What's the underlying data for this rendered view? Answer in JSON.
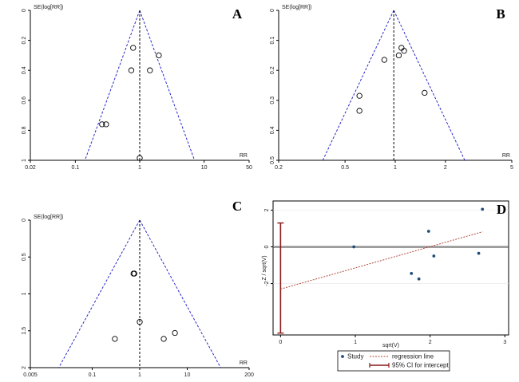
{
  "chart_data": [
    {
      "panel": "A",
      "type": "scatter",
      "ylabel": "SE(log[RR])",
      "xlabel": "RR",
      "x_scale": "log",
      "y_reversed": true,
      "x_ticks": [
        "0.02",
        "0.1",
        "1",
        "10",
        "50"
      ],
      "y_ticks": [
        "0",
        "0.2",
        "0.4",
        "0.6",
        "0.8",
        "1"
      ],
      "xlim": [
        0.02,
        50
      ],
      "ylim": [
        0,
        1
      ],
      "pooled_estimate": 1.0,
      "points": [
        {
          "x": 0.79,
          "y": 0.25
        },
        {
          "x": 1.98,
          "y": 0.3
        },
        {
          "x": 0.74,
          "y": 0.4
        },
        {
          "x": 1.44,
          "y": 0.4
        },
        {
          "x": 0.26,
          "y": 0.76
        },
        {
          "x": 0.3,
          "y": 0.76
        },
        {
          "x": 1.0,
          "y": 0.985
        }
      ]
    },
    {
      "panel": "B",
      "type": "scatter",
      "ylabel": "SE(log[RR])",
      "xlabel": "RR",
      "x_scale": "log",
      "y_reversed": true,
      "x_ticks": [
        "0.2",
        "0.5",
        "1",
        "2",
        "5"
      ],
      "y_ticks": [
        "0",
        "0.1",
        "0.2",
        "0.3",
        "0.4",
        "0.5"
      ],
      "xlim": [
        0.2,
        5
      ],
      "ylim": [
        0,
        0.5
      ],
      "pooled_estimate": 0.98,
      "points": [
        {
          "x": 1.09,
          "y": 0.125
        },
        {
          "x": 1.13,
          "y": 0.135
        },
        {
          "x": 1.05,
          "y": 0.15
        },
        {
          "x": 0.86,
          "y": 0.165
        },
        {
          "x": 1.5,
          "y": 0.275
        },
        {
          "x": 0.61,
          "y": 0.285
        },
        {
          "x": 0.61,
          "y": 0.335
        }
      ]
    },
    {
      "panel": "C",
      "type": "scatter",
      "ylabel": "SE(log[RR])",
      "xlabel": "RR",
      "x_scale": "log",
      "y_reversed": true,
      "x_ticks": [
        "0.005",
        "0.1",
        "1",
        "10",
        "200"
      ],
      "y_ticks": [
        "0",
        "0.5",
        "1",
        "1.5",
        "2"
      ],
      "xlim": [
        0.005,
        200
      ],
      "ylim": [
        0,
        2
      ],
      "pooled_estimate": 1.0,
      "points": [
        {
          "x": 0.74,
          "y": 0.725
        },
        {
          "x": 0.77,
          "y": 0.725
        },
        {
          "x": 1.0,
          "y": 1.38
        },
        {
          "x": 5.5,
          "y": 1.53
        },
        {
          "x": 0.3,
          "y": 1.61
        },
        {
          "x": 3.2,
          "y": 1.61
        }
      ]
    },
    {
      "panel": "D",
      "type": "scatter",
      "ylabel": "Z / sqrt(V)",
      "xlabel": "sqrt(V)",
      "x_ticks": [
        "0",
        "1",
        "2",
        "3"
      ],
      "y_ticks": [
        "2",
        "0",
        "-2"
      ],
      "xlim": [
        -0.1,
        3.05
      ],
      "ylim": [
        -4.8,
        2.5
      ],
      "points": [
        {
          "x": 0.98,
          "y": 0.0
        },
        {
          "x": 1.98,
          "y": 0.85
        },
        {
          "x": 2.05,
          "y": -0.5
        },
        {
          "x": 1.75,
          "y": -1.45
        },
        {
          "x": 1.85,
          "y": -1.75
        },
        {
          "x": 2.65,
          "y": -0.35
        },
        {
          "x": 2.7,
          "y": 2.05
        }
      ],
      "regression_line": {
        "x": [
          0,
          2.7
        ],
        "y": [
          -2.3,
          0.82
        ]
      },
      "intercept_ci": {
        "x": 0,
        "low": -4.7,
        "high": 1.3
      },
      "legend": {
        "position": "bottom",
        "items": [
          {
            "key": "study",
            "label": "Study",
            "color": "#1f4e79"
          },
          {
            "key": "regression",
            "label": "regression line",
            "color": "#b04a3a"
          },
          {
            "key": "ci",
            "label": "95% CI for intercept",
            "color": "#8b1a1a"
          }
        ]
      }
    }
  ],
  "colors": {
    "funnel": "#2a2acc",
    "axis": "#000000",
    "marker": "#000000",
    "point_dark": "#1f4e79",
    "regression": "#b04a3a",
    "ci_bar": "#8b1a1a"
  }
}
